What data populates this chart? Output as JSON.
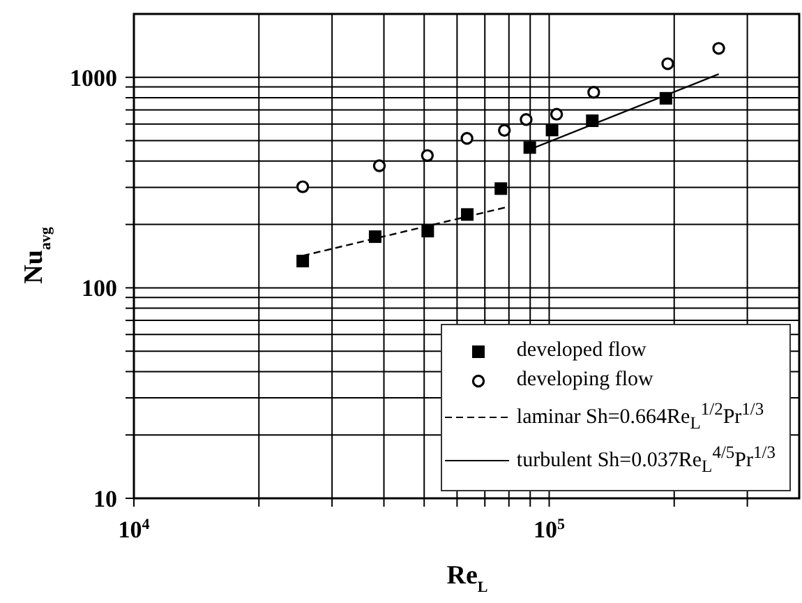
{
  "chart_data": {
    "type": "scatter",
    "xlabel": "Re$_{L}$",
    "ylabel": "Nu$_{avg}$",
    "log": "xy",
    "grid": true,
    "legend": "bottom right",
    "xlim": [
      10000,
      400000
    ],
    "ylim": [
      10,
      2000
    ],
    "xticks": [
      {
        "value": 10000,
        "label": "10$^{4}$"
      },
      {
        "value": 20000,
        "label": null
      },
      {
        "value": 30000,
        "label": null
      },
      {
        "value": 40000,
        "label": null
      },
      {
        "value": 50000,
        "label": null
      },
      {
        "value": 60000,
        "label": null
      },
      {
        "value": 70000,
        "label": null
      },
      {
        "value": 80000,
        "label": null
      },
      {
        "value": 90000,
        "label": null
      },
      {
        "value": 100000,
        "label": "10$^{5}$"
      },
      {
        "value": 200000,
        "label": null
      },
      {
        "value": 300000,
        "label": null
      }
    ],
    "yticks": [
      10,
      {
        "value": 20,
        "label": null
      },
      {
        "value": 30,
        "label": null
      },
      {
        "value": 40,
        "label": null
      },
      {
        "value": 50,
        "label": null
      },
      {
        "value": 60,
        "label": null
      },
      {
        "value": 70,
        "label": null
      },
      {
        "value": 80,
        "label": null
      },
      {
        "value": 90,
        "label": null
      },
      100,
      {
        "value": 200,
        "label": null
      },
      {
        "value": 300,
        "label": null
      },
      {
        "value": 400,
        "label": null
      },
      {
        "value": 500,
        "label": null
      },
      {
        "value": 600,
        "label": null
      },
      {
        "value": 700,
        "label": null
      },
      {
        "value": 800,
        "label": null
      },
      {
        "value": 900,
        "label": null
      },
      1000
    ],
    "series": [
      {
        "name": "developed flow",
        "marker": "square",
        "color": "#000000",
        "x": [
          25500,
          38100,
          51000,
          63500,
          76500,
          89800,
          101600,
          127000,
          191000
        ],
        "values": [
          134,
          175,
          186,
          223,
          296,
          464,
          562,
          622,
          795
        ]
      },
      {
        "name": "developing flow",
        "marker": "circle",
        "color": "#000000",
        "x": [
          25500,
          39000,
          50900,
          63400,
          78000,
          88000,
          104200,
          128000,
          193000,
          256000
        ],
        "values": [
          302,
          380,
          425,
          513,
          560,
          630,
          668,
          849,
          1160,
          1372
        ]
      },
      {
        "name": "laminar Sh=0.664Re$_{L}$$^{1/2}$Pr$^{1/3}$",
        "type": "line",
        "marker": "none",
        "line_style": "dashed",
        "color": "#000000",
        "x": [
          25500,
          78500
        ],
        "values": [
          142,
          241
        ]
      },
      {
        "name": "turbulent Sh=0.037Re$_{L}$$^{4/5}$Pr$^{1/3}$",
        "type": "line",
        "marker": "none",
        "line_style": "solid",
        "color": "#000000",
        "x": [
          89800,
          256000
        ],
        "values": [
          454,
          1036
        ]
      }
    ]
  }
}
